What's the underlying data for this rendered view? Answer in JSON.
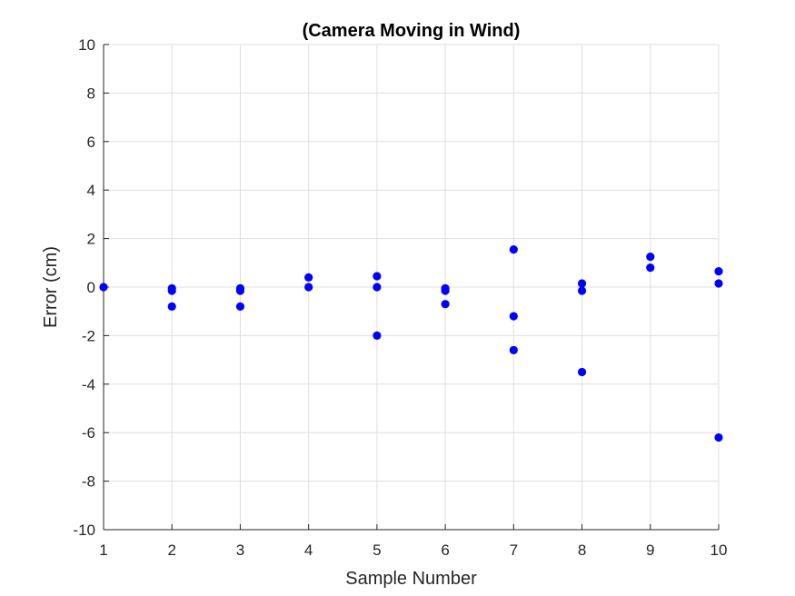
{
  "chart_data": {
    "type": "scatter",
    "title": "(Camera Moving in Wind)",
    "xlabel": "Sample Number",
    "ylabel": "Error (cm)",
    "xlim": [
      1,
      10
    ],
    "ylim": [
      -10,
      10
    ],
    "x_ticks": [
      1,
      2,
      3,
      4,
      5,
      6,
      7,
      8,
      9,
      10
    ],
    "y_ticks": [
      -10,
      -8,
      -6,
      -4,
      -2,
      0,
      2,
      4,
      6,
      8,
      10
    ],
    "grid": true,
    "legend": "none",
    "marker_color": "#0000ff",
    "series": [
      {
        "points": [
          [
            1,
            0.0
          ],
          [
            2,
            -0.05
          ],
          [
            2,
            -0.15
          ],
          [
            2,
            -0.8
          ],
          [
            3,
            -0.05
          ],
          [
            3,
            -0.15
          ],
          [
            3,
            -0.8
          ],
          [
            4,
            0.4
          ],
          [
            4,
            0.0
          ],
          [
            5,
            0.45
          ],
          [
            5,
            0.0
          ],
          [
            5,
            -2.0
          ],
          [
            6,
            -0.05
          ],
          [
            6,
            -0.15
          ],
          [
            6,
            -0.7
          ],
          [
            7,
            1.55
          ],
          [
            7,
            -1.2
          ],
          [
            7,
            -2.6
          ],
          [
            8,
            0.15
          ],
          [
            8,
            -0.15
          ],
          [
            8,
            -3.5
          ],
          [
            9,
            1.25
          ],
          [
            9,
            0.8
          ],
          [
            10,
            0.65
          ],
          [
            10,
            0.15
          ],
          [
            10,
            -6.2
          ]
        ]
      }
    ]
  }
}
